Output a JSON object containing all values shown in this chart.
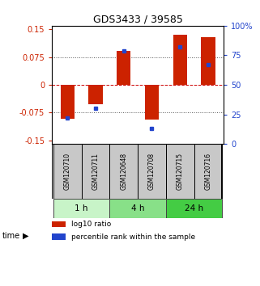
{
  "title": "GDS3433 / 39585",
  "samples": [
    "GSM120710",
    "GSM120711",
    "GSM120648",
    "GSM120708",
    "GSM120715",
    "GSM120716"
  ],
  "log10_ratio": [
    -0.092,
    -0.052,
    0.092,
    -0.095,
    0.135,
    0.128
  ],
  "percentile_rank": [
    22,
    30,
    79,
    13,
    82,
    67
  ],
  "time_groups": [
    {
      "label": "1 h",
      "start": 0,
      "end": 1,
      "color": "#c8f4c8"
    },
    {
      "label": "4 h",
      "start": 2,
      "end": 3,
      "color": "#88e088"
    },
    {
      "label": "24 h",
      "start": 4,
      "end": 5,
      "color": "#44cc44"
    }
  ],
  "ylim": [
    -0.16,
    0.16
  ],
  "yticks_left": [
    -0.15,
    -0.075,
    0,
    0.075,
    0.15
  ],
  "yticks_right": [
    0,
    25,
    50,
    75,
    100
  ],
  "bar_color_red": "#cc2200",
  "bar_color_blue": "#2244cc",
  "hline_zero_color": "#cc0000",
  "hline_dotted_color": "#555555",
  "sample_box_color": "#c8c8c8",
  "background_color": "#ffffff"
}
